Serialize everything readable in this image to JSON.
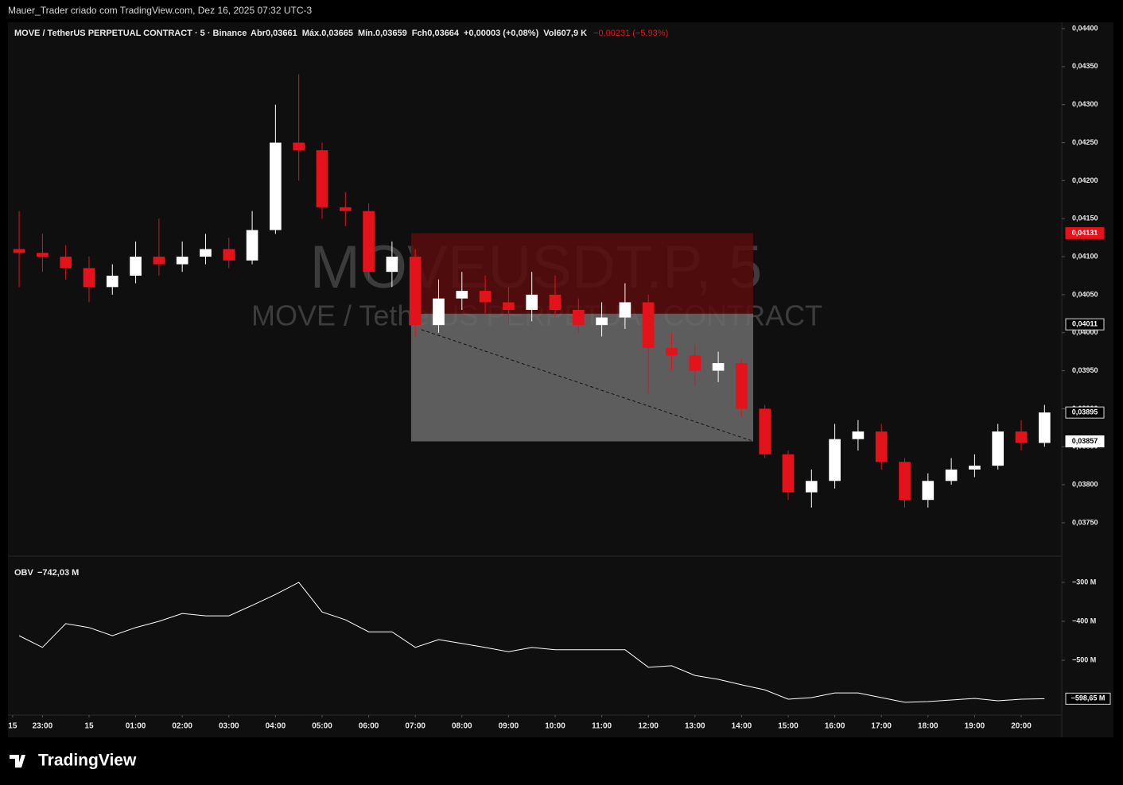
{
  "header": {
    "credit": "Mauer_Trader criado com TradingView.com, Dez 16, 2025 07:32 UTC-3",
    "symbol": "MOVE / TetherUS PERPETUAL CONTRACT · 5 · Binance",
    "ohlc": [
      {
        "label": "Abr",
        "value": "0,03661"
      },
      {
        "label": "Máx.",
        "value": "0,03665"
      },
      {
        "label": "Mín.",
        "value": "0,03659"
      },
      {
        "label": "Fch",
        "value": "0,03664"
      }
    ],
    "change": "+0,00003 (+0,08%)",
    "volume_label": "Vol",
    "volume": "607,9 K",
    "day_change": "−0,00231 (−5,93%)"
  },
  "watermark": {
    "ticker": "MOVEUSDT.P, 5",
    "name": "MOVE / TetherUS PERPETUAL CONTRACT"
  },
  "footer": {
    "brand": "TradingView"
  },
  "chart_data": {
    "type": "candlestick",
    "up_color": "#ffffff",
    "down_color": "#e3121b",
    "xlim": [
      -1.74,
      20.87
    ],
    "xticks": [
      {
        "value": -1.64,
        "label": "15"
      },
      {
        "value": -1,
        "label": "23:00"
      },
      {
        "value": 0,
        "label": "15"
      },
      {
        "value": 1,
        "label": "01:00"
      },
      {
        "value": 2,
        "label": "02:00"
      },
      {
        "value": 3,
        "label": "03:00"
      },
      {
        "value": 4,
        "label": "04:00"
      },
      {
        "value": 5,
        "label": "05:00"
      },
      {
        "value": 6,
        "label": "06:00"
      },
      {
        "value": 7,
        "label": "07:00"
      },
      {
        "value": 8,
        "label": "08:00"
      },
      {
        "value": 9,
        "label": "09:00"
      },
      {
        "value": 10,
        "label": "10:00"
      },
      {
        "value": 11,
        "label": "11:00"
      },
      {
        "value": 12,
        "label": "12:00"
      },
      {
        "value": 13,
        "label": "13:00"
      },
      {
        "value": 14,
        "label": "14:00"
      },
      {
        "value": 15,
        "label": "15:00"
      },
      {
        "value": 16,
        "label": "16:00"
      },
      {
        "value": 17,
        "label": "17:00"
      },
      {
        "value": 18,
        "label": "18:00"
      },
      {
        "value": 19,
        "label": "19:00"
      },
      {
        "value": 20,
        "label": "20:00"
      }
    ],
    "x": [
      -1.5,
      -1,
      -0.5,
      0,
      0.5,
      1,
      1.5,
      2,
      2.5,
      3,
      3.5,
      4,
      4.5,
      5,
      5.5,
      6,
      6.5,
      7,
      7.5,
      8,
      8.5,
      9,
      9.5,
      10,
      10.5,
      11,
      11.5,
      12,
      12.5,
      13,
      13.5,
      14,
      14.5,
      15,
      15.5,
      16,
      16.5,
      17,
      17.5,
      18,
      18.5,
      19,
      19.5,
      20,
      20.5
    ],
    "open": [
      0.0411,
      0.04105,
      0.041,
      0.04085,
      0.0406,
      0.04075,
      0.041,
      0.0409,
      0.041,
      0.0411,
      0.04095,
      0.04135,
      0.0425,
      0.0424,
      0.04165,
      0.0416,
      0.0408,
      0.041,
      0.0401,
      0.04045,
      0.04055,
      0.0404,
      0.0403,
      0.0405,
      0.0403,
      0.0401,
      0.0402,
      0.0404,
      0.0398,
      0.0397,
      0.0395,
      0.0396,
      0.039,
      0.0384,
      0.0379,
      0.03805,
      0.0386,
      0.0387,
      0.0383,
      0.0378,
      0.03805,
      0.0382,
      0.03825,
      0.0387,
      0.03855
    ],
    "high": [
      0.0416,
      0.0413,
      0.04115,
      0.041,
      0.0409,
      0.0412,
      0.0415,
      0.0412,
      0.0413,
      0.04125,
      0.0416,
      0.043,
      0.0434,
      0.0425,
      0.04185,
      0.0417,
      0.0412,
      0.0411,
      0.0407,
      0.0408,
      0.04075,
      0.0406,
      0.0408,
      0.04075,
      0.04045,
      0.0404,
      0.04065,
      0.0405,
      0.04,
      0.03985,
      0.03975,
      0.03965,
      0.03905,
      0.03845,
      0.0382,
      0.0388,
      0.03885,
      0.0388,
      0.03835,
      0.03815,
      0.03835,
      0.0384,
      0.0388,
      0.03885,
      0.03905
    ],
    "low": [
      0.0406,
      0.0408,
      0.0407,
      0.0404,
      0.0405,
      0.04065,
      0.04075,
      0.0408,
      0.0409,
      0.04085,
      0.0409,
      0.0413,
      0.042,
      0.0415,
      0.0414,
      0.0407,
      0.0406,
      0.03995,
      0.04,
      0.0403,
      0.04025,
      0.0401,
      0.04015,
      0.0402,
      0.04,
      0.03995,
      0.04005,
      0.0392,
      0.0395,
      0.0393,
      0.03935,
      0.0389,
      0.03835,
      0.0378,
      0.0377,
      0.03795,
      0.03845,
      0.0382,
      0.0377,
      0.0377,
      0.038,
      0.0381,
      0.0382,
      0.03845,
      0.0385
    ],
    "close": [
      0.04105,
      0.041,
      0.04085,
      0.0406,
      0.04075,
      0.041,
      0.0409,
      0.041,
      0.0411,
      0.04095,
      0.04135,
      0.0425,
      0.0424,
      0.04165,
      0.0416,
      0.0408,
      0.041,
      0.0401,
      0.04045,
      0.04055,
      0.0404,
      0.0403,
      0.0405,
      0.0403,
      0.0401,
      0.0402,
      0.0404,
      0.0398,
      0.0397,
      0.0395,
      0.0396,
      0.039,
      0.0384,
      0.0379,
      0.03805,
      0.0386,
      0.0387,
      0.0383,
      0.0378,
      0.03805,
      0.0382,
      0.03825,
      0.0387,
      0.03855,
      0.03895
    ],
    "ylim": [
      0.03706,
      0.044084
    ],
    "yticks": [
      {
        "value": 0.044,
        "label": "0,04400"
      },
      {
        "value": 0.0435,
        "label": "0,04350"
      },
      {
        "value": 0.043,
        "label": "0,04300"
      },
      {
        "value": 0.0425,
        "label": "0,04250"
      },
      {
        "value": 0.042,
        "label": "0,04200"
      },
      {
        "value": 0.0415,
        "label": "0,04150"
      },
      {
        "value": 0.041,
        "label": "0,04100"
      },
      {
        "value": 0.0405,
        "label": "0,04050"
      },
      {
        "value": 0.04,
        "label": "0,04000"
      },
      {
        "value": 0.0395,
        "label": "0,03950"
      },
      {
        "value": 0.039,
        "label": "0,03900"
      },
      {
        "value": 0.0385,
        "label": "0,03850"
      },
      {
        "value": 0.038,
        "label": "0,03800"
      },
      {
        "value": 0.0375,
        "label": "0,03750"
      }
    ],
    "price_labels": [
      {
        "value": 0.04131,
        "label": "0,04131",
        "color": "#e3121b"
      },
      {
        "value": 0.04011,
        "label": "0,04011",
        "color": "#000000"
      },
      {
        "value": 0.03895,
        "label": "0,03895",
        "color": "#000000"
      },
      {
        "value": 0.03857,
        "label": "0,03857",
        "color": "#ffffff"
      }
    ],
    "zones": [
      {
        "x": [
          6.91,
          14.25
        ],
        "y": [
          0.04025,
          0.04131
        ],
        "color": "#5a0c0c"
      },
      {
        "x": [
          6.91,
          14.25
        ],
        "y": [
          0.03857,
          0.04025
        ],
        "color": "#6b6b6b"
      }
    ],
    "trendline": {
      "x": [
        7.13,
        14.21
      ],
      "y": [
        0.04004,
        0.03858
      ]
    },
    "obv": {
      "name": "OBV",
      "value_label": "−742,03 M",
      "color": "#ffffff",
      "values": [
        -437,
        -467,
        -406,
        -416,
        -437,
        -416,
        -400,
        -380,
        -386,
        -386,
        -359,
        -331,
        -300,
        -376,
        -396,
        -427,
        -427,
        -467,
        -447,
        -457,
        -467,
        -478,
        -467,
        -473,
        -473,
        -473,
        -473,
        -518,
        -514,
        -539,
        -549,
        -563,
        -576,
        -600,
        -596,
        -584,
        -584,
        -596,
        -608,
        -606,
        -602,
        -598,
        -604,
        -600,
        -598.65
      ],
      "ylim": [
        -640.8,
        -232.7
      ],
      "yticks": [
        {
          "value": -300,
          "label": "−300 M"
        },
        {
          "value": -400,
          "label": "−400 M"
        },
        {
          "value": -500,
          "label": "−500 M"
        }
      ],
      "last": {
        "value": -598.65,
        "label": "−598,65 M"
      }
    }
  }
}
